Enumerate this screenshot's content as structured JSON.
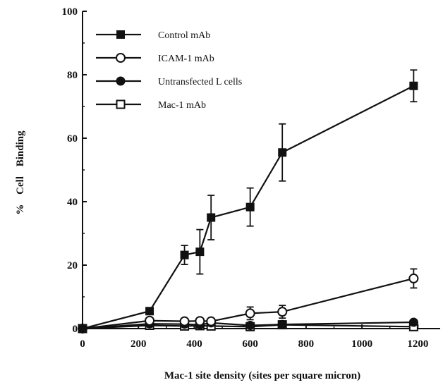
{
  "chart_data": {
    "type": "line",
    "title": "",
    "xlabel": "Mac-1 site density (sites per square micron)",
    "ylabel": "% Cell Binding",
    "xlim": [
      0,
      1280
    ],
    "ylim": [
      0,
      100
    ],
    "xticks": [
      0,
      200,
      400,
      600,
      800,
      1000,
      1200
    ],
    "yticks": [
      0,
      20,
      40,
      60,
      80,
      100
    ],
    "grid": false,
    "legend_position": "top-left",
    "series": [
      {
        "name": "Control mAb",
        "marker": "filled-square",
        "points": [
          {
            "x": 0,
            "y": 0,
            "err": 0
          },
          {
            "x": 240,
            "y": 5.5,
            "err": 0
          },
          {
            "x": 365,
            "y": 23.2,
            "err": 3
          },
          {
            "x": 420,
            "y": 24.2,
            "err": 7
          },
          {
            "x": 460,
            "y": 35,
            "err": 7
          },
          {
            "x": 600,
            "y": 38.3,
            "err": 6
          },
          {
            "x": 715,
            "y": 55.5,
            "err": 9
          },
          {
            "x": 1185,
            "y": 76.5,
            "err": 5
          }
        ]
      },
      {
        "name": "ICAM-1 mAb",
        "marker": "open-circle",
        "points": [
          {
            "x": 0,
            "y": 0,
            "err": 0
          },
          {
            "x": 240,
            "y": 2.5,
            "err": 0
          },
          {
            "x": 365,
            "y": 2.3,
            "err": 0
          },
          {
            "x": 420,
            "y": 2.4,
            "err": 0
          },
          {
            "x": 460,
            "y": 2.3,
            "err": 0
          },
          {
            "x": 600,
            "y": 4.8,
            "err": 2
          },
          {
            "x": 715,
            "y": 5.3,
            "err": 2
          },
          {
            "x": 1185,
            "y": 15.8,
            "err": 3
          }
        ]
      },
      {
        "name": "Untransfected L cells",
        "marker": "filled-circle",
        "points": [
          {
            "x": 0,
            "y": 0,
            "err": 0
          },
          {
            "x": 240,
            "y": 1.5,
            "err": 0
          },
          {
            "x": 365,
            "y": 1.4,
            "err": 0
          },
          {
            "x": 420,
            "y": 1.2,
            "err": 0
          },
          {
            "x": 460,
            "y": 1.8,
            "err": 0
          },
          {
            "x": 600,
            "y": 1.0,
            "err": 0
          },
          {
            "x": 715,
            "y": 1.3,
            "err": 0
          },
          {
            "x": 1185,
            "y": 2.0,
            "err": 0
          }
        ]
      },
      {
        "name": "Mac-1 mAb",
        "marker": "open-square",
        "points": [
          {
            "x": 0,
            "y": 0,
            "err": 0
          },
          {
            "x": 240,
            "y": 1.0,
            "err": 0
          },
          {
            "x": 365,
            "y": 0.8,
            "err": 0
          },
          {
            "x": 420,
            "y": 0.9,
            "err": 0
          },
          {
            "x": 460,
            "y": 0.8,
            "err": 0
          },
          {
            "x": 600,
            "y": 0.6,
            "err": 0
          },
          {
            "x": 715,
            "y": 1.2,
            "err": 0
          },
          {
            "x": 1185,
            "y": 0.6,
            "err": 0
          }
        ]
      }
    ]
  }
}
